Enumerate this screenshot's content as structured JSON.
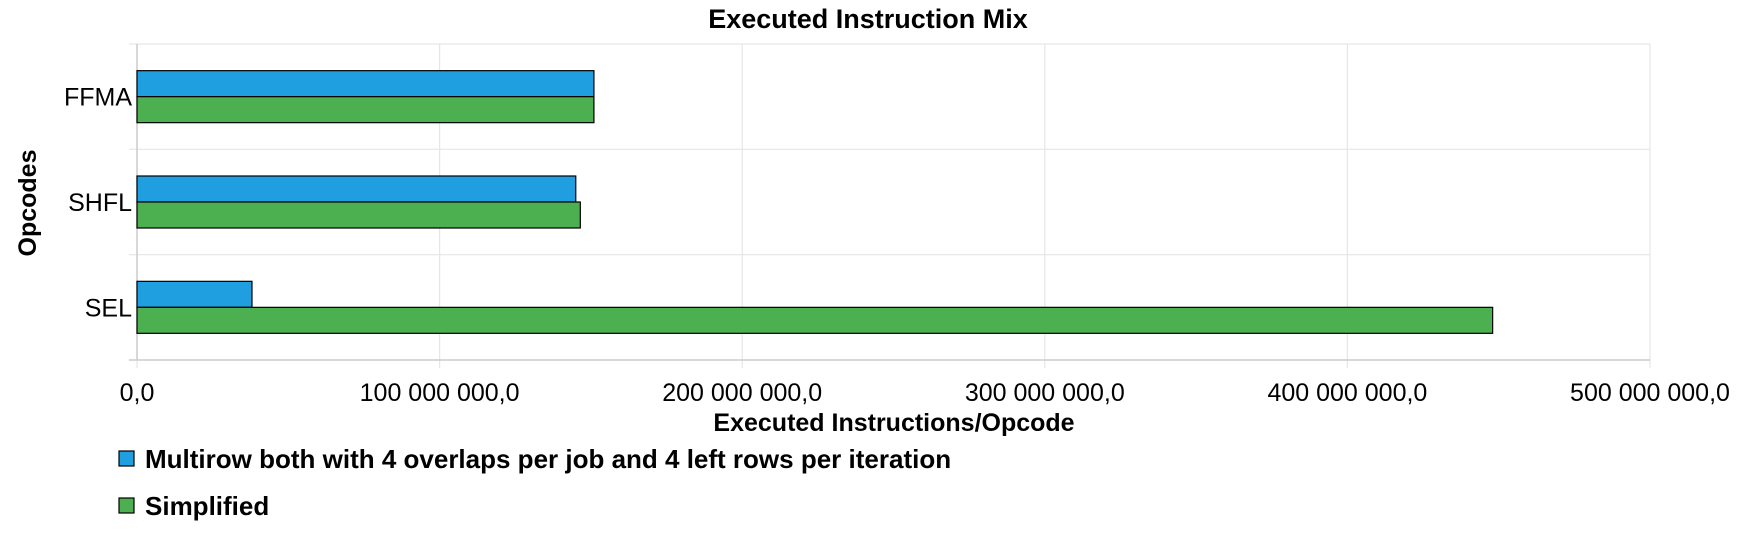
{
  "chart_data": {
    "type": "bar",
    "orientation": "horizontal",
    "title": "Executed Instruction Mix",
    "xlabel": "Executed Instructions/Opcode",
    "ylabel": "Opcodes",
    "categories": [
      "FFMA",
      "SHFL",
      "SEL"
    ],
    "xlim": [
      0,
      500000000
    ],
    "x_ticks": [
      0,
      100000000,
      200000000,
      300000000,
      400000000,
      500000000
    ],
    "x_tick_labels": [
      "0,0",
      "100 000 000,0",
      "200 000 000,0",
      "300 000 000,0",
      "400 000 000,0",
      "500 000 000,0"
    ],
    "grid": true,
    "legend_position": "bottom-left",
    "series": [
      {
        "name": "Multirow both with 4 overlaps per job and 4 left rows per iteration",
        "color": "#1f9fe0",
        "values": [
          151000000,
          145000000,
          38000000
        ]
      },
      {
        "name": "Simplified",
        "color": "#4caf50",
        "values": [
          151000000,
          146500000,
          448000000
        ]
      }
    ]
  }
}
